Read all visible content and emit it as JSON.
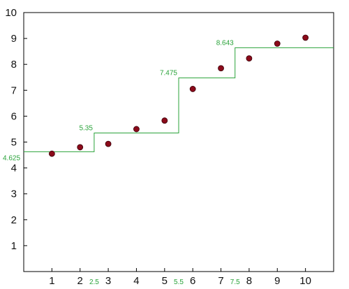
{
  "chart_data": {
    "type": "scatter",
    "title": "",
    "xlabel": "",
    "ylabel": "",
    "xlim": [
      0,
      11
    ],
    "ylim": [
      0,
      10
    ],
    "x_ticks": [
      1,
      2,
      3,
      4,
      5,
      6,
      7,
      8,
      9,
      10
    ],
    "y_ticks": [
      1,
      2,
      3,
      4,
      5,
      6,
      7,
      8,
      9,
      10
    ],
    "grid": false,
    "legend": "none",
    "series": [
      {
        "type": "scatter",
        "color": "#8b0a1a",
        "x": [
          1,
          2,
          3,
          4,
          5,
          6,
          7,
          8,
          9,
          10
        ],
        "y": [
          4.55,
          4.8,
          4.93,
          5.5,
          5.83,
          7.05,
          7.85,
          8.23,
          8.8,
          9.03
        ]
      },
      {
        "type": "step",
        "color": "#2aa33a",
        "segments": [
          {
            "x_start": 0,
            "x_end": 2.5,
            "y": 4.625
          },
          {
            "x_start": 2.5,
            "x_end": 5.5,
            "y": 5.35
          },
          {
            "x_start": 5.5,
            "x_end": 7.5,
            "y": 7.475
          },
          {
            "x_start": 7.5,
            "x_end": 11,
            "y": 8.643
          }
        ],
        "value_labels": [
          "4.625",
          "5.35",
          "7.475",
          "8.643"
        ],
        "breakpoints": [
          2.5,
          5.5,
          7.5
        ],
        "breakpoint_labels": [
          "2.5",
          "5.5",
          "7.5"
        ]
      }
    ]
  }
}
